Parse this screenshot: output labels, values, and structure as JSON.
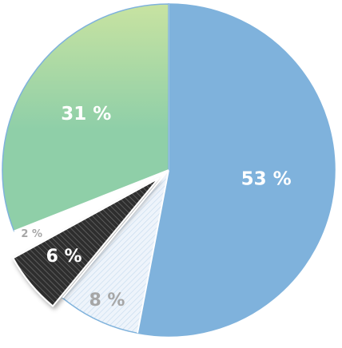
{
  "chart_data": {
    "type": "pie",
    "slices": [
      {
        "label": "53 %",
        "value": 53,
        "color": "#7fb2dc",
        "fill": "solid",
        "label_color": "#ffffff"
      },
      {
        "label": "8 %",
        "value": 8,
        "color": "#eef4fb",
        "fill": "light-hatch",
        "label_color": "#a6a6a6"
      },
      {
        "label": "6 %",
        "value": 6,
        "color": "#3a3a3a",
        "fill": "dark-hatch",
        "label_color": "#ffffff",
        "exploded": true
      },
      {
        "label": "2 %",
        "value": 2,
        "color": "#ffffff",
        "fill": "solid",
        "label_color": "#a6a6a6"
      },
      {
        "label": "31 %",
        "value": 31,
        "color": "#8fcfa8",
        "fill": "gradient",
        "gradient_top": "#c8e3a1",
        "label_color": "#ffffff"
      }
    ],
    "start_angle": "12 o'clock",
    "direction": "clockwise",
    "outline_color": "#7fb2dc"
  }
}
